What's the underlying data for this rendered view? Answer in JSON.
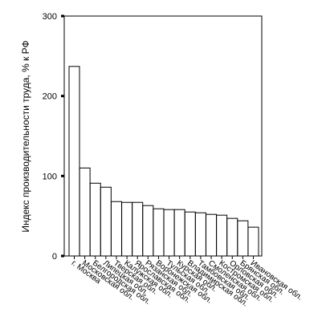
{
  "chart_data": {
    "type": "bar",
    "title": "",
    "xlabel": "",
    "ylabel": "Индекс производительности труда, % к РФ",
    "ylim": [
      0,
      300
    ],
    "yticks": [
      0,
      100,
      200,
      300
    ],
    "grid": false,
    "legend": "none",
    "bar_fill": "#ffffff",
    "bar_stroke": "#000000",
    "categories": [
      "г. Москва",
      "Московская обл.",
      "Белгородская обл.",
      "Липецкая обл.",
      "Тверская обл.",
      "Калужская обл.",
      "Ярославская обл.",
      "Рязанская обл.",
      "Воронежская обл.",
      "Тульская обл.",
      "Курская обл.",
      "Владимирская обл.",
      "Тамбовская обл.",
      "Смоленская обл.",
      "Костромская обл.",
      "Орловская обл.",
      "Брянская обл.",
      "Ивановская обл."
    ],
    "values": [
      237,
      110,
      91,
      86,
      68,
      67,
      67,
      63,
      59,
      58,
      58,
      55,
      54,
      52,
      51,
      47,
      44,
      36
    ]
  }
}
